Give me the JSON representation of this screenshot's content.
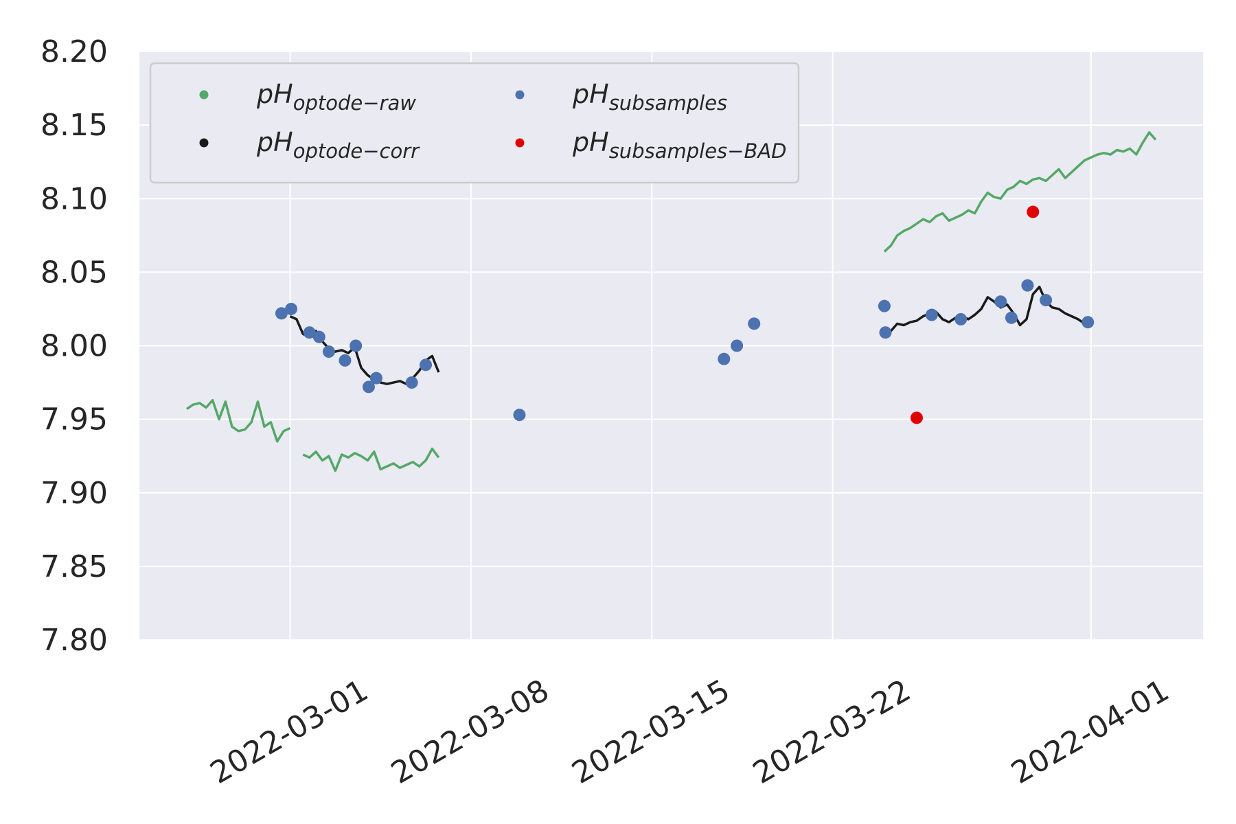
{
  "chart_data": {
    "type": "line",
    "legend": "upper left",
    "legend_columns": 2,
    "grid": true,
    "ylim": [
      7.8,
      8.2
    ],
    "yticks": [
      {
        "value": 7.8,
        "label": "7.80"
      },
      7.85,
      {
        "value": 7.9,
        "label": "7.90"
      },
      7.95,
      {
        "value": 8.0,
        "label": "8.00"
      },
      8.05,
      {
        "value": 8.1,
        "label": "8.10"
      },
      8.15,
      {
        "value": 8.2,
        "label": "8.20"
      }
    ],
    "xlim": [
      "2022-02-23T04:00",
      "2022-04-05T08:00"
    ],
    "xticks": [
      "2022-03-01",
      "2022-03-08",
      "2022-03-15",
      "2022-03-22",
      "2022-04-01"
    ],
    "series": [
      {
        "name": "pH",
        "subscript": "optode−raw",
        "type": "line",
        "color": "#55a868",
        "x": [
          "2022-02-25T00:00",
          "2022-02-25T06:00",
          "2022-02-25T12:00",
          "2022-02-25T18:00",
          "2022-02-26T00:00",
          "2022-02-26T06:00",
          "2022-02-26T12:00",
          "2022-02-26T18:00",
          "2022-02-27T00:00",
          "2022-02-27T06:00",
          "2022-02-27T12:00",
          "2022-02-27T18:00",
          "2022-02-28T00:00",
          "2022-02-28T06:00",
          "2022-02-28T12:00",
          "2022-02-28T18:00",
          "2022-03-01T00:00",
          "2022-03-01T06:00",
          "2022-03-01T12:00",
          "2022-03-01T18:00",
          "2022-03-02T00:00",
          "2022-03-02T06:00",
          "2022-03-02T12:00",
          "2022-03-02T18:00",
          "2022-03-03T00:00",
          "2022-03-03T06:00",
          "2022-03-03T12:00",
          "2022-03-03T18:00",
          "2022-03-04T00:00",
          "2022-03-04T06:00",
          "2022-03-04T12:00",
          "2022-03-04T18:00",
          "2022-03-05T00:00",
          "2022-03-05T06:00",
          "2022-03-05T12:00",
          "2022-03-05T18:00",
          "2022-03-06T00:00",
          "2022-03-06T06:00",
          "2022-03-06T12:00",
          "2022-03-06T18:00",
          "2022-03-07T00:00",
          "2022-03-24T00:00",
          "2022-03-24T06:00",
          "2022-03-24T12:00",
          "2022-03-24T18:00",
          "2022-03-25T00:00",
          "2022-03-25T06:00",
          "2022-03-25T12:00",
          "2022-03-25T18:00",
          "2022-03-26T00:00",
          "2022-03-26T06:00",
          "2022-03-26T12:00",
          "2022-03-26T18:00",
          "2022-03-27T00:00",
          "2022-03-27T06:00",
          "2022-03-27T12:00",
          "2022-03-27T18:00",
          "2022-03-28T00:00",
          "2022-03-28T06:00",
          "2022-03-28T12:00",
          "2022-03-28T18:00",
          "2022-03-29T00:00",
          "2022-03-29T06:00",
          "2022-03-29T12:00",
          "2022-03-29T18:00",
          "2022-03-30T00:00",
          "2022-03-30T06:00",
          "2022-03-30T12:00",
          "2022-03-30T18:00",
          "2022-03-31T00:00",
          "2022-03-31T06:00",
          "2022-03-31T12:00",
          "2022-03-31T18:00",
          "2022-04-01T00:00",
          "2022-04-01T06:00",
          "2022-04-01T12:00",
          "2022-04-01T18:00",
          "2022-04-02T00:00",
          "2022-04-02T06:00",
          "2022-04-02T12:00",
          "2022-04-02T18:00",
          "2022-04-03T00:00",
          "2022-04-03T06:00",
          "2022-04-03T12:00"
        ],
        "values": [
          7.957,
          7.96,
          7.961,
          7.958,
          7.963,
          7.95,
          7.962,
          7.945,
          7.942,
          7.943,
          7.948,
          7.962,
          7.945,
          7.948,
          7.935,
          7.942,
          7.944,
          null,
          7.926,
          7.924,
          7.928,
          7.922,
          7.925,
          7.915,
          7.926,
          7.924,
          7.927,
          7.925,
          7.922,
          7.928,
          7.916,
          7.918,
          7.92,
          7.917,
          7.919,
          7.921,
          7.918,
          7.922,
          7.93,
          7.924,
          null,
          8.064,
          8.068,
          8.075,
          8.078,
          8.08,
          8.083,
          8.086,
          8.084,
          8.088,
          8.09,
          8.085,
          8.087,
          8.089,
          8.092,
          8.09,
          8.098,
          8.104,
          8.101,
          8.1,
          8.106,
          8.108,
          8.112,
          8.11,
          8.113,
          8.114,
          8.112,
          8.116,
          8.12,
          8.114,
          8.118,
          8.122,
          8.126,
          8.128,
          8.13,
          8.131,
          8.13,
          8.133,
          8.132,
          8.134,
          8.13,
          8.138,
          8.145,
          8.14
        ]
      },
      {
        "name": "pH",
        "subscript": "optode−corr",
        "type": "line",
        "color": "#1a1a1a",
        "x": [
          "2022-03-01T00:00",
          "2022-03-01T06:00",
          "2022-03-01T12:00",
          "2022-03-01T18:00",
          "2022-03-02T00:00",
          "2022-03-02T06:00",
          "2022-03-02T12:00",
          "2022-03-02T18:00",
          "2022-03-03T00:00",
          "2022-03-03T06:00",
          "2022-03-03T12:00",
          "2022-03-03T18:00",
          "2022-03-04T00:00",
          "2022-03-04T06:00",
          "2022-03-04T12:00",
          "2022-03-04T18:00",
          "2022-03-05T00:00",
          "2022-03-05T06:00",
          "2022-03-05T12:00",
          "2022-03-05T18:00",
          "2022-03-06T00:00",
          "2022-03-06T06:00",
          "2022-03-06T12:00",
          "2022-03-06T18:00",
          "2022-03-07T00:00",
          "2022-03-24T00:00",
          "2022-03-24T06:00",
          "2022-03-24T12:00",
          "2022-03-24T18:00",
          "2022-03-25T00:00",
          "2022-03-25T06:00",
          "2022-03-25T12:00",
          "2022-03-25T18:00",
          "2022-03-26T00:00",
          "2022-03-26T06:00",
          "2022-03-26T12:00",
          "2022-03-26T18:00",
          "2022-03-27T00:00",
          "2022-03-27T06:00",
          "2022-03-27T12:00",
          "2022-03-27T18:00",
          "2022-03-28T00:00",
          "2022-03-28T06:00",
          "2022-03-28T12:00",
          "2022-03-28T18:00",
          "2022-03-29T00:00",
          "2022-03-29T06:00",
          "2022-03-29T12:00",
          "2022-03-29T18:00",
          "2022-03-30T00:00",
          "2022-03-30T06:00",
          "2022-03-30T12:00",
          "2022-03-30T18:00",
          "2022-03-31T00:00",
          "2022-03-31T06:00",
          "2022-03-31T12:00",
          "2022-03-31T18:00"
        ],
        "values": [
          8.02,
          8.018,
          8.008,
          8.006,
          8.01,
          8.003,
          7.998,
          7.996,
          7.997,
          7.995,
          7.999,
          7.985,
          7.98,
          7.977,
          7.975,
          7.974,
          7.975,
          7.976,
          7.974,
          7.978,
          7.983,
          7.99,
          7.993,
          7.982,
          null,
          8.008,
          8.01,
          8.015,
          8.014,
          8.016,
          8.017,
          8.02,
          8.022,
          8.023,
          8.018,
          8.016,
          8.019,
          8.02,
          8.018,
          8.021,
          8.025,
          8.033,
          8.03,
          8.026,
          8.028,
          8.022,
          8.014,
          8.018,
          8.035,
          8.04,
          8.03,
          8.026,
          8.025,
          8.022,
          8.02,
          8.018,
          8.015
        ]
      },
      {
        "name": "pH",
        "subscript": "subsamples",
        "type": "scatter",
        "color": "#4c72b0",
        "x": [
          "2022-02-28T16:00",
          "2022-03-01T01:00",
          "2022-03-01T18:00",
          "2022-03-02T03:00",
          "2022-03-02T12:00",
          "2022-03-03T03:00",
          "2022-03-03T13:00",
          "2022-03-04T01:00",
          "2022-03-04T08:00",
          "2022-03-05T17:00",
          "2022-03-06T06:00",
          "2022-03-09T21:00",
          "2022-03-17T19:00",
          "2022-03-18T07:00",
          "2022-03-18T23:00",
          "2022-03-24T00:00",
          "2022-03-24T01:00",
          "2022-03-25T20:00",
          "2022-03-26T23:00",
          "2022-03-28T12:00",
          "2022-03-28T22:00",
          "2022-03-29T13:00",
          "2022-03-30T06:00",
          "2022-03-31T21:00"
        ],
        "values": [
          8.022,
          8.025,
          8.009,
          8.006,
          7.996,
          7.99,
          8.0,
          7.972,
          7.978,
          7.975,
          7.987,
          7.953,
          7.991,
          8.0,
          8.015,
          8.027,
          8.009,
          8.021,
          8.018,
          8.03,
          8.019,
          8.041,
          8.031,
          8.016
        ]
      },
      {
        "name": "pH",
        "subscript": "subsamples−BAD",
        "type": "scatter",
        "color": "#e00000",
        "x": [
          "2022-03-25T06:00",
          "2022-03-29T18:00"
        ],
        "values": [
          7.951,
          8.091
        ]
      }
    ]
  }
}
